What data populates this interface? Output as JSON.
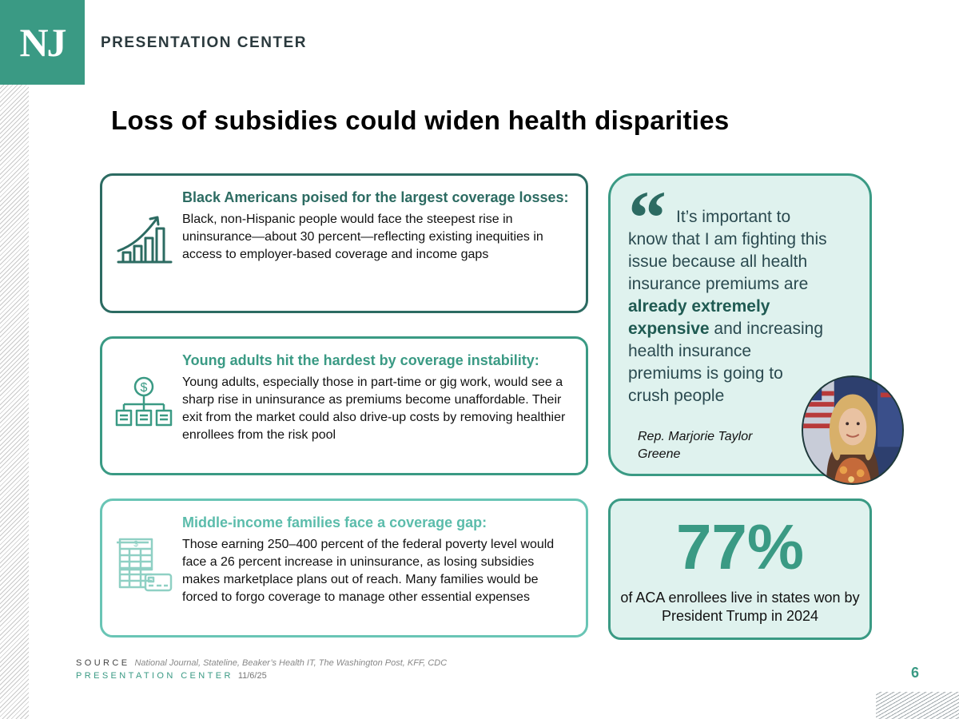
{
  "header": {
    "logo_text": "NJ",
    "brand": "PRESENTATION CENTER"
  },
  "title": "Loss of subsidies could widen health disparities",
  "cards": [
    {
      "icon": "bar-chart-rising-icon",
      "heading": "Black Americans poised for the largest coverage losses:",
      "body": "Black, non-Hispanic people would face the steepest rise in uninsurance—about 30 percent—reflecting existing inequities in access to employer-based coverage and income gaps"
    },
    {
      "icon": "dollar-hierarchy-icon",
      "heading": "Young adults hit the hardest by coverage instability:",
      "body": "Young adults, especially those in part-time or gig work, would see a sharp rise in uninsurance as premiums become unaffordable. Their exit from the market could also drive-up costs by removing healthier enrollees from the risk pool"
    },
    {
      "icon": "invoice-card-icon",
      "heading": "Middle-income families face a coverage gap:",
      "body": "Those earning 250–400 percent of the federal poverty level would face a 26 percent increase in uninsurance, as losing subsidies makes marketplace plans out of reach. Many families would be forced to forgo coverage to manage other essential expenses"
    }
  ],
  "quote": {
    "text_before": "It’s important to know that I am fighting this issue because all health insurance premiums are ",
    "text_bold": "already extremely expensive",
    "text_after": " and increasing health insurance premiums is going to crush people",
    "author": "Rep. Marjorie Taylor Greene",
    "icon": "quote-mark-icon"
  },
  "stat": {
    "value": "77%",
    "caption": "of ACA enrollees live in states won by President Trump in 2024"
  },
  "footer": {
    "source_label": "SOURCE",
    "source_text": "National Journal, Stateline, Beaker’s Health IT, The Washington Post, KFF, CDC",
    "center_label": "PRESENTATION CENTER",
    "date": "11/6/25",
    "page": "6"
  },
  "colors": {
    "accent": "#3a9a84",
    "dark": "#2c6b62",
    "light": "#69c5b5",
    "panel": "#dff2ee"
  }
}
